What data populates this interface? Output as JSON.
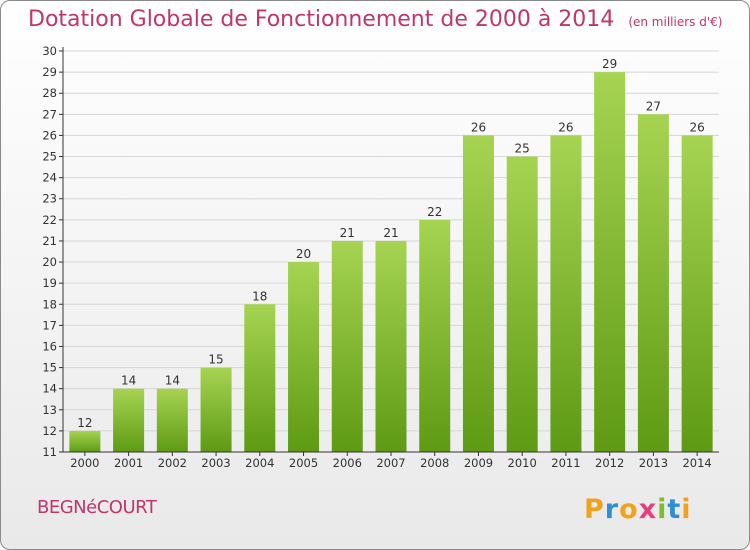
{
  "header": {
    "title": "Dotation Globale de Fonctionnement de 2000 à 2014",
    "unit_note": "(en milliers d'€)"
  },
  "footer": {
    "commune": "BEGNéCOURT",
    "logo_text": "Proxiti"
  },
  "colors": {
    "title": "#c0356b",
    "bar_top": "#a6d452",
    "bar_bottom": "#5e9a14",
    "axis": "#333333",
    "grid": "#d6d6d6"
  },
  "chart_data": {
    "type": "bar",
    "title": "Dotation Globale de Fonctionnement de 2000 à 2014",
    "subtitle": "(en milliers d'€)",
    "categories": [
      "2000",
      "2001",
      "2002",
      "2003",
      "2004",
      "2005",
      "2006",
      "2007",
      "2008",
      "2009",
      "2010",
      "2011",
      "2012",
      "2013",
      "2014"
    ],
    "values": [
      12,
      14,
      14,
      15,
      18,
      20,
      21,
      21,
      22,
      26,
      25,
      26,
      29,
      27,
      26
    ],
    "ylim": [
      11,
      30
    ],
    "ytick_step": 1,
    "grid": true,
    "data_labels": true,
    "legend": "none"
  }
}
